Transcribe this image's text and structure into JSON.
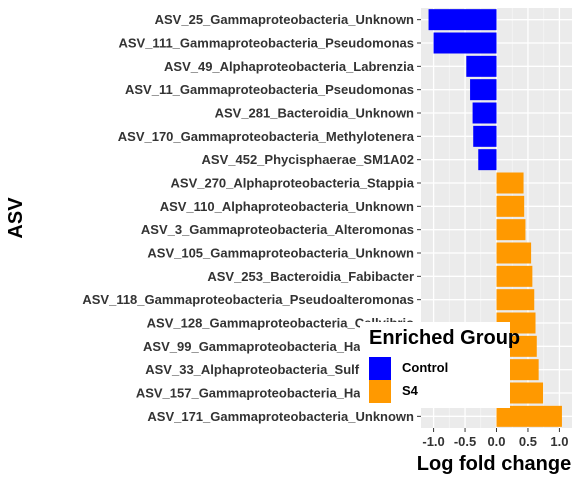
{
  "chart_data": {
    "type": "bar",
    "orientation": "horizontal",
    "title": "",
    "xlabel": "Log fold change",
    "ylabel": "ASV",
    "xlim": [
      -1.2,
      1.2
    ],
    "xticks": [
      -1.0,
      -0.5,
      0.0,
      0.5,
      1.0
    ],
    "xtick_labels": [
      "-1.0",
      "-0.5",
      "0.0",
      "0.5",
      "1.0"
    ],
    "grid": true,
    "legend": {
      "title": "Enriched Group",
      "position": "inside-bottom-right",
      "entries": [
        {
          "label": "Control",
          "color": "#0000FF"
        },
        {
          "label": "S4",
          "color": "#FF9900"
        }
      ]
    },
    "categories": [
      "ASV_25_Gammaproteobacteria_Unknown",
      "ASV_111_Gammaproteobacteria_Pseudomonas",
      "ASV_49_Alphaproteobacteria_Labrenzia",
      "ASV_11_Gammaproteobacteria_Pseudomonas",
      "ASV_281_Bacteroidia_Unknown",
      "ASV_170_Gammaproteobacteria_Methylotenera",
      "ASV_452_Phycisphaerae_SM1A02",
      "ASV_270_Alphaproteobacteria_Stappia",
      "ASV_110_Alphaproteobacteria_Unknown",
      "ASV_3_Gammaproteobacteria_Alteromonas",
      "ASV_105_Gammaproteobacteria_Unknown",
      "ASV_253_Bacteroidia_Fabibacter",
      "ASV_118_Gammaproteobacteria_Pseudoalteromonas",
      "ASV_128_Gammaproteobacteria_Cellvibrio",
      "ASV_99_Gammaproteobacteria_Halomonas",
      "ASV_33_Alphaproteobacteria_Sulfitobacter",
      "ASV_157_Gammaproteobacteria_Halomonas",
      "ASV_171_Gammaproteobacteria_Unknown"
    ],
    "values": [
      -1.08,
      -1.0,
      -0.48,
      -0.42,
      -0.38,
      -0.37,
      -0.29,
      0.43,
      0.44,
      0.46,
      0.55,
      0.57,
      0.6,
      0.62,
      0.64,
      0.67,
      0.74,
      1.04
    ],
    "groups": [
      "Control",
      "Control",
      "Control",
      "Control",
      "Control",
      "Control",
      "Control",
      "S4",
      "S4",
      "S4",
      "S4",
      "S4",
      "S4",
      "S4",
      "S4",
      "S4",
      "S4",
      "S4"
    ]
  },
  "colors": {
    "Control": "#0000FF",
    "S4": "#FF9900",
    "panel": "#EBEBEB",
    "grid_major": "#FFFFFF"
  }
}
